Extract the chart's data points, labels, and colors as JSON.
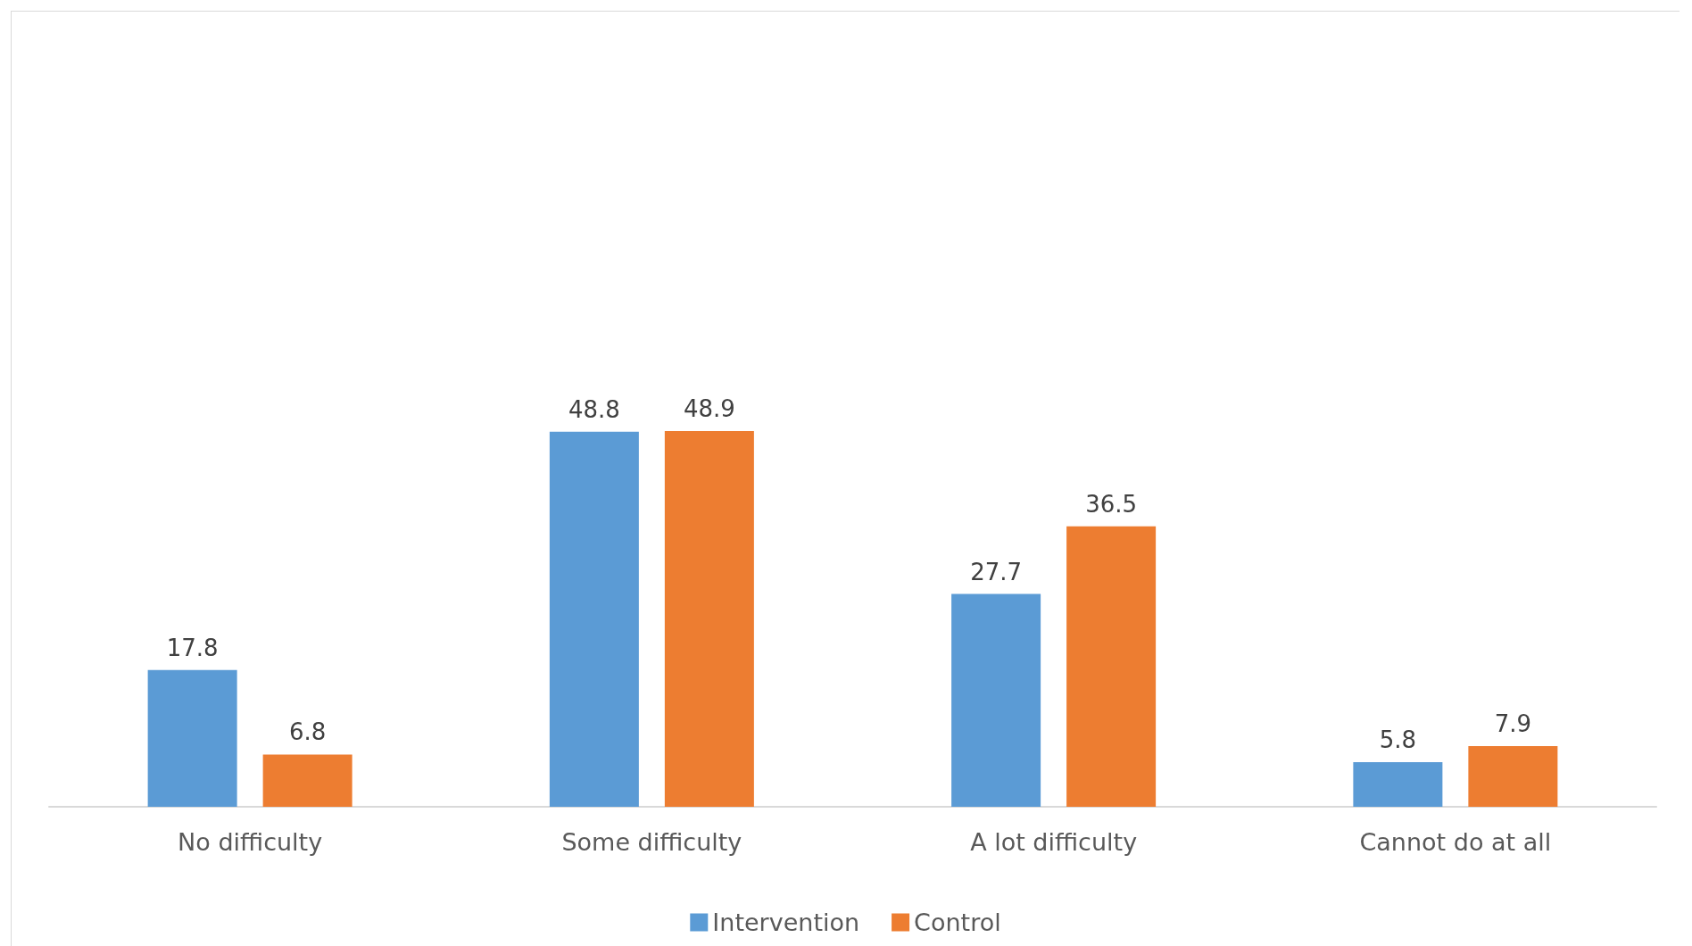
{
  "chart_data": {
    "type": "bar",
    "categories": [
      "No difficulty",
      "Some difficulty",
      "A lot difficulty",
      "Cannot do at all"
    ],
    "series": [
      {
        "name": "Intervention",
        "color": "#5b9bd5",
        "values": [
          17.8,
          48.8,
          27.7,
          5.8
        ]
      },
      {
        "name": "Control",
        "color": "#ed7d31",
        "values": [
          6.8,
          48.9,
          36.5,
          7.9
        ]
      }
    ],
    "data_labels": true,
    "legend": "bottom"
  }
}
